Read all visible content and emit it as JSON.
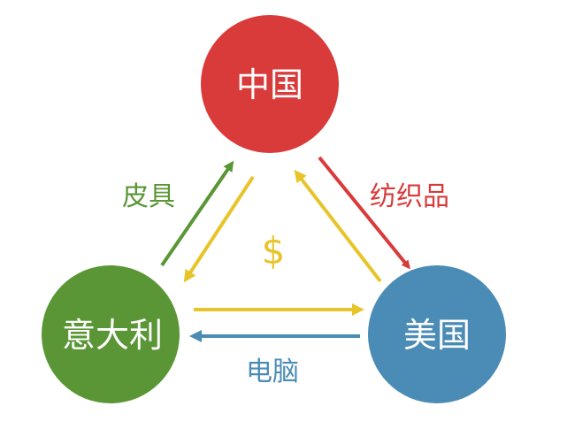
{
  "nodes": {
    "china": {
      "label": "中国",
      "color": "#d93a3a"
    },
    "usa": {
      "label": "美国",
      "color": "#4a8cb5"
    },
    "italy": {
      "label": "意大利",
      "color": "#5a9636"
    }
  },
  "edges": {
    "china_to_usa": {
      "label": "纺织品",
      "color": "#d93a3a"
    },
    "usa_to_italy": {
      "label": "电脑",
      "color": "#4a8cb5"
    },
    "italy_to_china": {
      "label": "皮具",
      "color": "#5a9636"
    },
    "money_color": "#e8c42b"
  },
  "center_symbol": "$"
}
